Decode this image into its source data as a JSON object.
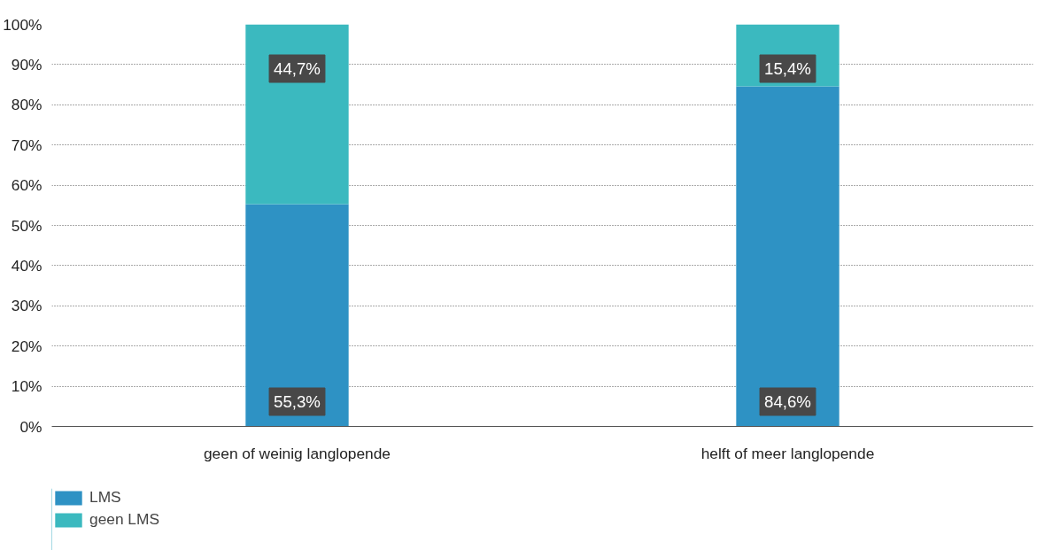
{
  "chart_data": {
    "type": "bar",
    "stacked": true,
    "categories": [
      "geen of weinig langlopende",
      "helft of meer langlopende"
    ],
    "series": [
      {
        "name": "LMS",
        "color": "#2e92c4",
        "values": [
          55.3,
          84.6
        ],
        "value_labels": [
          "55,3%",
          "84,6%"
        ]
      },
      {
        "name": "geen LMS",
        "color": "#3bb9bf",
        "values": [
          44.7,
          15.4
        ],
        "value_labels": [
          "44,7%",
          "15,4%"
        ]
      }
    ],
    "ylim": [
      0,
      100
    ],
    "yticks": [
      {
        "value": 0,
        "label": "0%"
      },
      {
        "value": 10,
        "label": "10%"
      },
      {
        "value": 20,
        "label": "20%"
      },
      {
        "value": 30,
        "label": "30%"
      },
      {
        "value": 40,
        "label": "40%"
      },
      {
        "value": 50,
        "label": "50%"
      },
      {
        "value": 60,
        "label": "60%"
      },
      {
        "value": 70,
        "label": "70%"
      },
      {
        "value": 80,
        "label": "80%"
      },
      {
        "value": 90,
        "label": "90%"
      },
      {
        "value": 100,
        "label": "100%"
      }
    ],
    "grid": "y",
    "legend": "bottom left"
  }
}
